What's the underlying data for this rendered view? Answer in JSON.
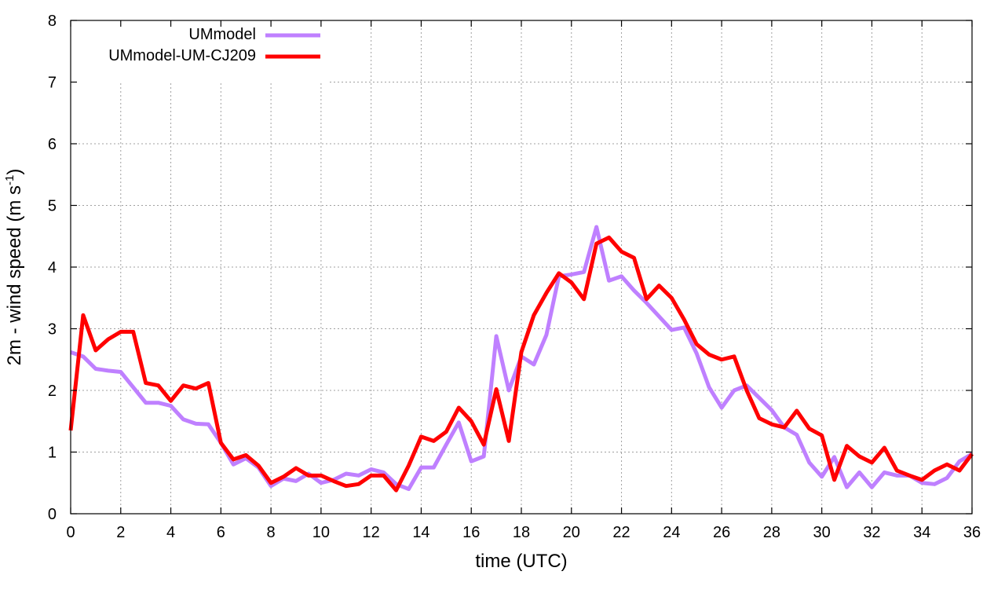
{
  "chart_data": {
    "type": "line",
    "title": "",
    "xlabel": "time (UTC)",
    "ylabel_main": "2m - wind speed  (m s",
    "ylabel_sup": "-1",
    "ylabel_close": ")",
    "xlim": [
      0,
      36
    ],
    "ylim": [
      0,
      8
    ],
    "xticks": [
      "0",
      "2",
      "4",
      "6",
      "8",
      "10",
      "12",
      "14",
      "16",
      "18",
      "20",
      "22",
      "24",
      "26",
      "28",
      "30",
      "32",
      "34",
      "36"
    ],
    "yticks": [
      "0",
      "1",
      "2",
      "3",
      "4",
      "5",
      "6",
      "7",
      "8"
    ],
    "grid": true,
    "legend_position": "top-left",
    "x": [
      0,
      0.5,
      1,
      1.5,
      2,
      2.5,
      3,
      3.5,
      4,
      4.5,
      5,
      5.5,
      6,
      6.5,
      7,
      7.5,
      8,
      8.5,
      9,
      9.5,
      10,
      10.5,
      11,
      11.5,
      12,
      12.5,
      13,
      13.5,
      14,
      14.5,
      15,
      15.5,
      16,
      16.5,
      17,
      17.5,
      18,
      18.5,
      19,
      19.5,
      20,
      20.5,
      21,
      21.5,
      22,
      22.5,
      23,
      23.5,
      24,
      24.5,
      25,
      25.5,
      26,
      26.5,
      27,
      27.5,
      28,
      28.5,
      29,
      29.5,
      30,
      30.5,
      31,
      31.5,
      32,
      32.5,
      33,
      33.5,
      34,
      34.5,
      35,
      35.5,
      36
    ],
    "series": [
      {
        "name": "UMmodel",
        "color": "#bf80ff",
        "values": [
          2.62,
          2.55,
          2.35,
          2.32,
          2.3,
          2.05,
          1.8,
          1.8,
          1.75,
          1.53,
          1.46,
          1.45,
          1.15,
          0.8,
          0.9,
          0.75,
          0.45,
          0.57,
          0.53,
          0.65,
          0.5,
          0.55,
          0.65,
          0.62,
          0.72,
          0.67,
          0.48,
          0.4,
          0.75,
          0.75,
          1.12,
          1.48,
          0.85,
          0.93,
          2.88,
          2.0,
          2.55,
          2.42,
          2.9,
          3.85,
          3.88,
          3.92,
          4.65,
          3.78,
          3.85,
          3.62,
          3.42,
          3.2,
          2.98,
          3.02,
          2.6,
          2.05,
          1.72,
          2.0,
          2.08,
          1.88,
          1.68,
          1.4,
          1.28,
          0.83,
          0.6,
          0.92,
          0.43,
          0.67,
          0.43,
          0.67,
          0.62,
          0.62,
          0.5,
          0.48,
          0.58,
          0.85,
          0.97
        ]
      },
      {
        "name": "UMmodel-UM-CJ209",
        "color": "#ff0000",
        "values": [
          1.35,
          3.22,
          2.65,
          2.83,
          2.95,
          2.95,
          2.12,
          2.08,
          1.83,
          2.08,
          2.03,
          2.12,
          1.15,
          0.88,
          0.95,
          0.78,
          0.5,
          0.6,
          0.74,
          0.62,
          0.62,
          0.53,
          0.45,
          0.48,
          0.62,
          0.62,
          0.38,
          0.78,
          1.25,
          1.18,
          1.33,
          1.72,
          1.5,
          1.12,
          2.02,
          1.18,
          2.62,
          3.22,
          3.58,
          3.9,
          3.75,
          3.48,
          4.38,
          4.48,
          4.25,
          4.15,
          3.48,
          3.7,
          3.5,
          3.15,
          2.75,
          2.58,
          2.5,
          2.55,
          2.0,
          1.55,
          1.45,
          1.4,
          1.67,
          1.38,
          1.27,
          0.55,
          1.1,
          0.93,
          0.83,
          1.07,
          0.7,
          0.62,
          0.55,
          0.7,
          0.8,
          0.7,
          0.97
        ]
      }
    ]
  }
}
